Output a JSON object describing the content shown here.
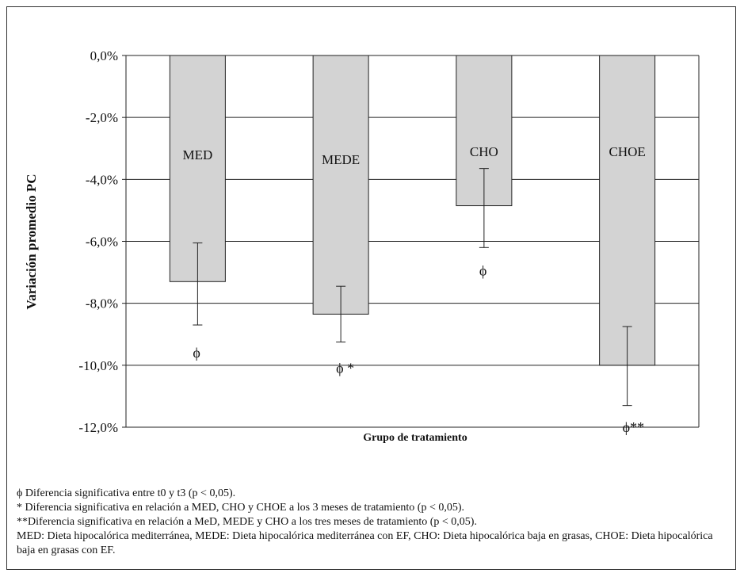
{
  "chart_data": {
    "type": "bar",
    "xlabel": "Grupo de tratamiento",
    "ylabel": "Variación promedio PC",
    "ylim": [
      -12,
      0
    ],
    "yticks": [
      0,
      -2,
      -4,
      -6,
      -8,
      -10,
      -12
    ],
    "ytick_labels": [
      "0,0%",
      "-2,0%",
      "-4,0%",
      "-6,0%",
      "-8,0%",
      "-10,0%",
      "-12,0%"
    ],
    "grid": true,
    "bar_color": "#d3d3d3",
    "categories": [
      "MED",
      "MEDE",
      "CHO",
      "CHOE"
    ],
    "values": [
      -7.3,
      -8.35,
      -4.85,
      -10.0
    ],
    "error_low": [
      -8.7,
      -9.25,
      -6.2,
      -11.3
    ],
    "error_high": [
      -6.05,
      -7.45,
      -3.65,
      -8.75
    ],
    "annotations": [
      {
        "category": "MED",
        "text": "ϕ",
        "y": -9.6
      },
      {
        "category": "MEDE",
        "text": "ϕ *",
        "y": -10.1
      },
      {
        "category": "CHO",
        "text": "ϕ",
        "y": -6.95
      },
      {
        "category": "CHOE",
        "text": "ϕ**",
        "y": -12.0
      }
    ]
  },
  "footnotes": [
    "ϕ Diferencia significativa entre t0 y t3 (p < 0,05).",
    "* Diferencia significativa en relación a MED, CHO y CHOE a los 3 meses de tratamiento (p < 0,05).",
    "**Diferencia significativa en relación a MeD, MEDE y CHO a los tres meses de tratamiento (p < 0,05).",
    "MED: Dieta hipocalórica mediterránea, MEDE: Dieta hipocalórica mediterránea con EF, CHO: Dieta hipocalórica baja en grasas, CHOE: Dieta hipocalórica baja en grasas con EF."
  ]
}
